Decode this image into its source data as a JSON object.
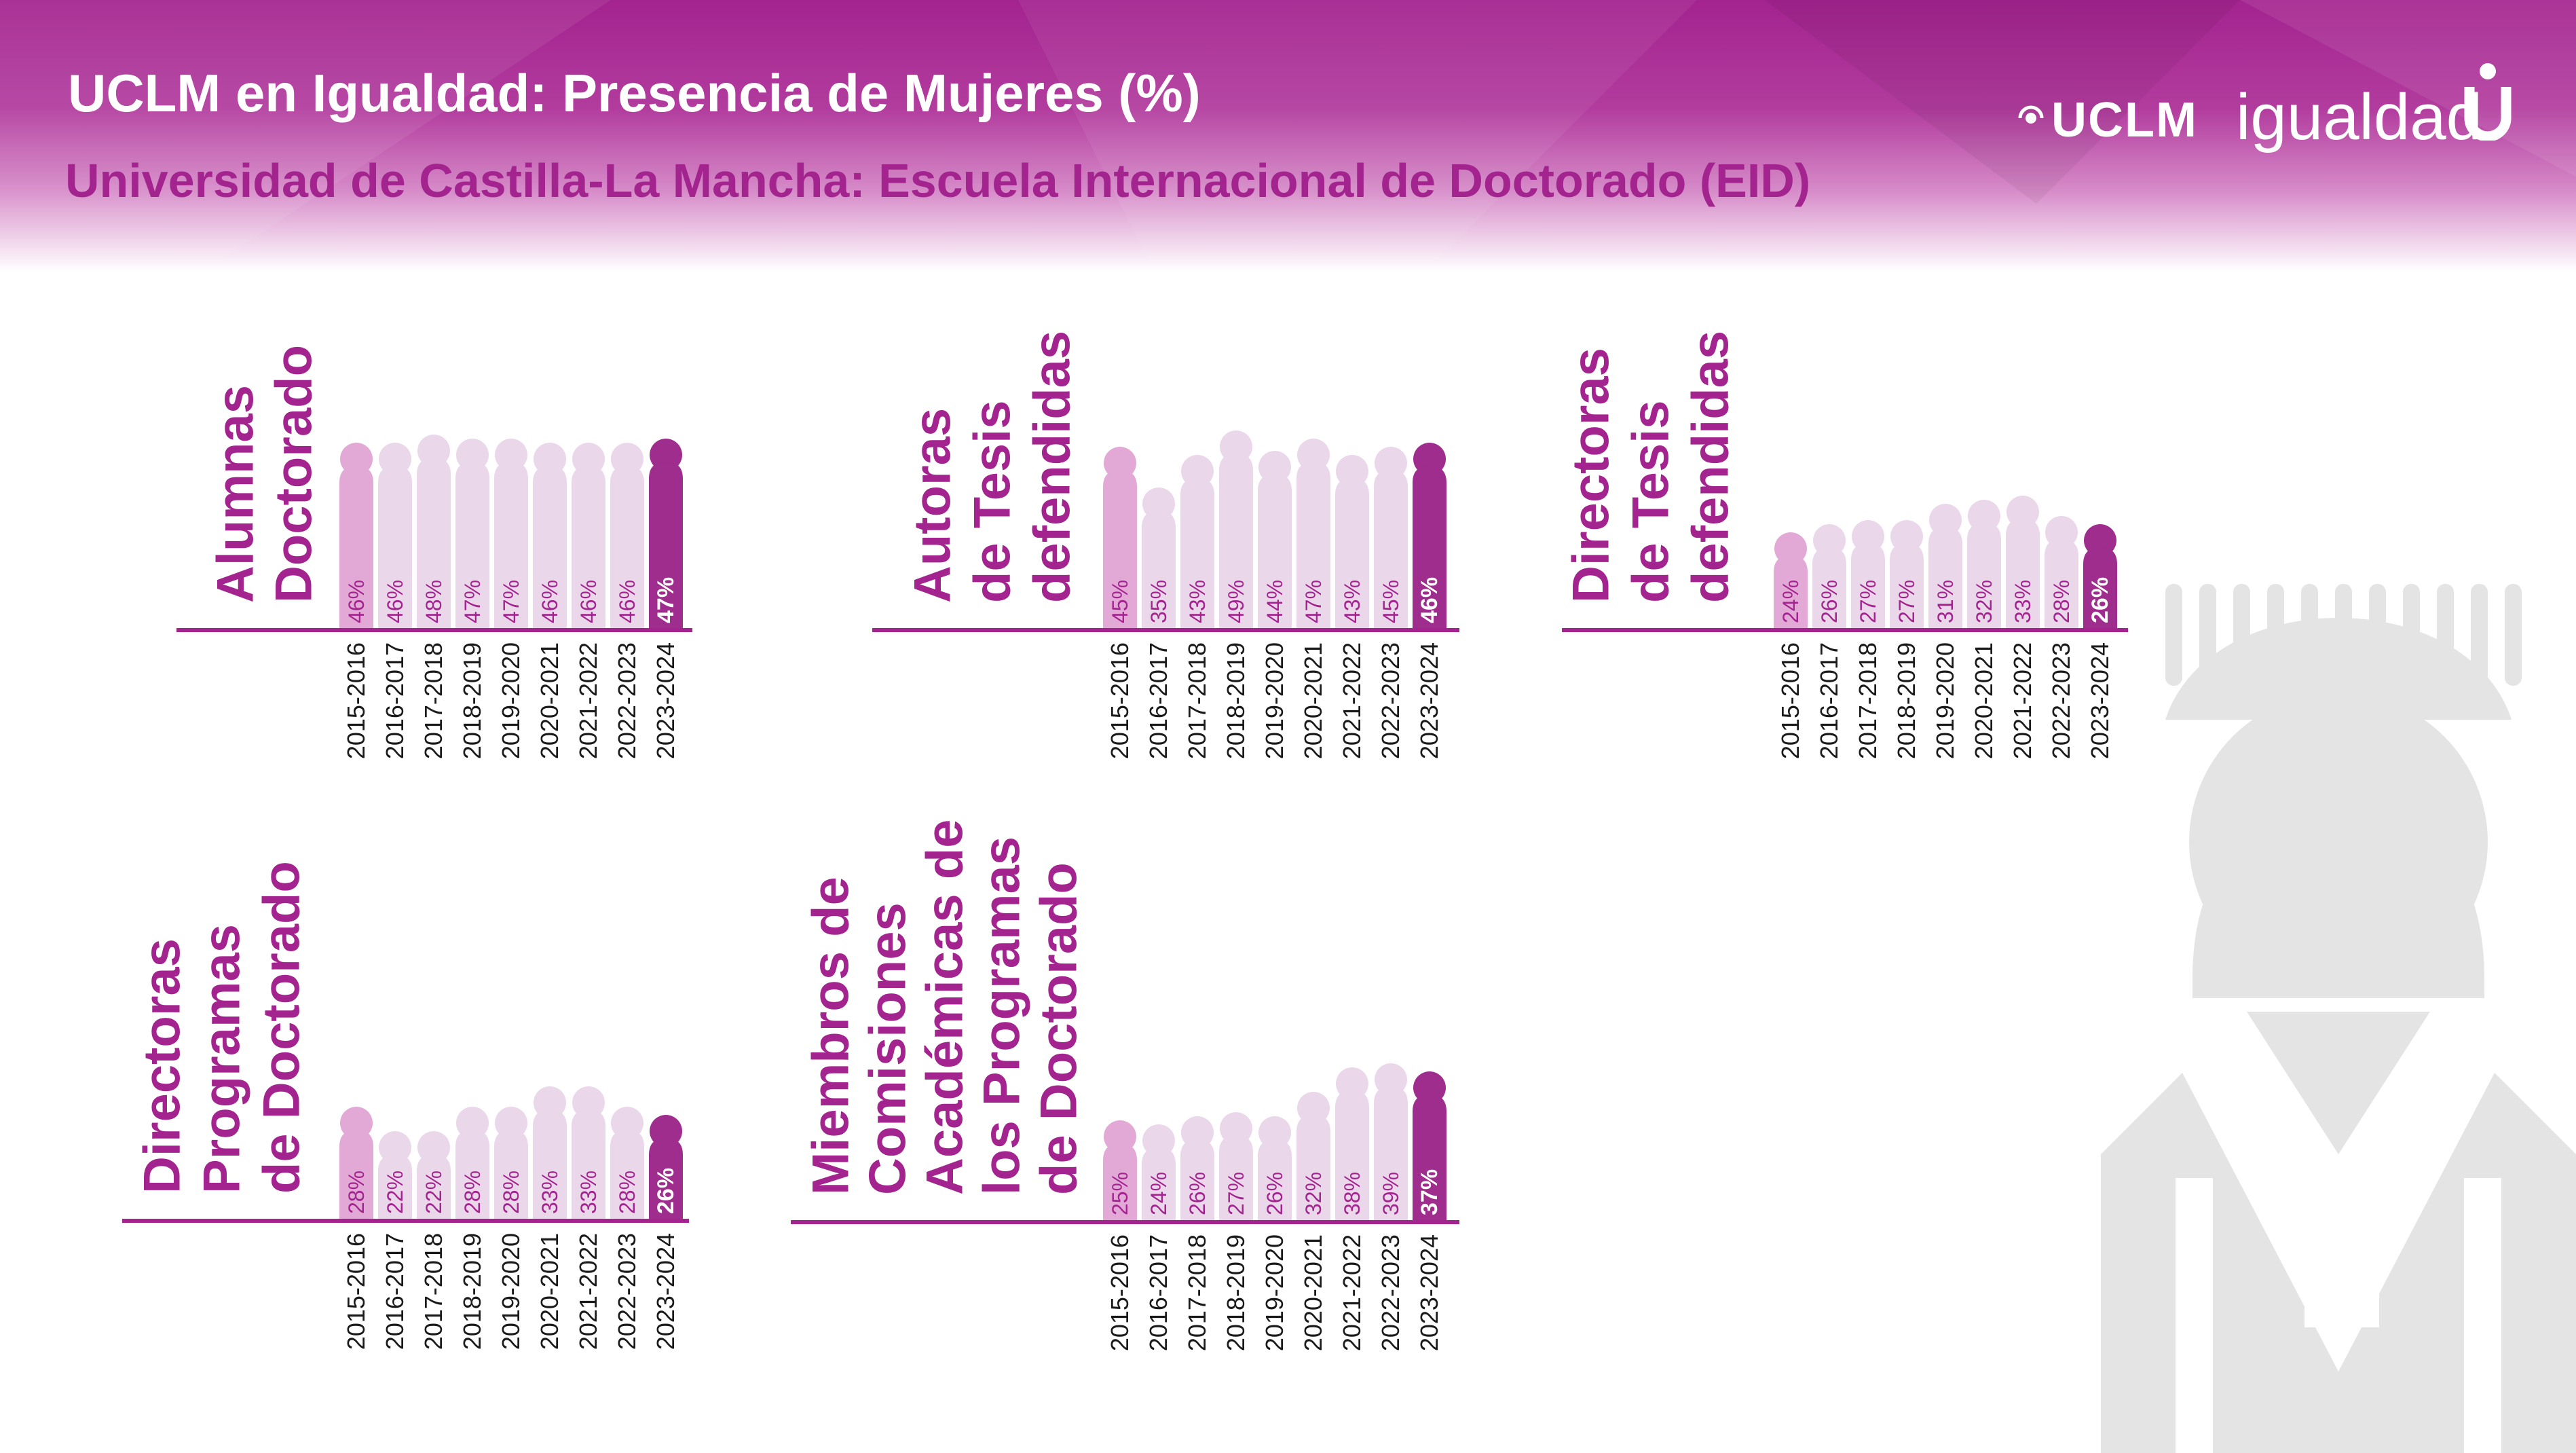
{
  "header": {
    "title": "UCLM en Igualdad: Presencia de Mujeres (%)",
    "subtitle": "Universidad de Castilla-La Mancha: Escuela Internacional de Doctorado (EID)",
    "logo": {
      "brand": "UCLM",
      "word": "igualdad",
      "mark": "U"
    }
  },
  "colors": {
    "header": "#a3238f",
    "axis": "#a3238f",
    "bar_first": "#e2a8d6",
    "bar_middle": "#ead7ea",
    "bar_last": "#9e2d8e",
    "label_text": "#a3238f",
    "label_last": "#ffffff",
    "figure_grey": "#e4e4e4"
  },
  "icons": {
    "background_figure": "graduate-figure-icon",
    "logo_mark": "uclm-u-icon"
  },
  "chart_data": [
    {
      "type": "bar",
      "title": "Alumnas Doctorado",
      "title_lines": [
        "Alumnas",
        "Doctorado"
      ],
      "categories": [
        "2015-2016",
        "2016-2017",
        "2017-2018",
        "2018-2019",
        "2019-2020",
        "2020-2021",
        "2021-2022",
        "2022-2023",
        "2023-2024"
      ],
      "values": [
        46,
        46,
        48,
        47,
        47,
        46,
        46,
        46,
        47
      ],
      "data_labels": [
        "46%",
        "46%",
        "48%",
        "47%",
        "47%",
        "46%",
        "46%",
        "46%",
        "47%"
      ],
      "unit": "%",
      "highlight_last": true,
      "grid": false
    },
    {
      "type": "bar",
      "title": "Autoras de Tesis defendidas",
      "title_lines": [
        "Autoras",
        "de Tesis",
        "defendidas"
      ],
      "categories": [
        "2015-2016",
        "2016-2017",
        "2017-2018",
        "2018-2019",
        "2019-2020",
        "2020-2021",
        "2021-2022",
        "2022-2023",
        "2023-2024"
      ],
      "values": [
        45,
        35,
        43,
        49,
        44,
        47,
        43,
        45,
        46
      ],
      "data_labels": [
        "45%",
        "35%",
        "43%",
        "49%",
        "44%",
        "47%",
        "43%",
        "45%",
        "46%"
      ],
      "unit": "%",
      "highlight_last": true,
      "grid": false
    },
    {
      "type": "bar",
      "title": "Directoras de Tesis defendidas",
      "title_lines": [
        "Directoras",
        "de Tesis",
        "defendidas"
      ],
      "categories": [
        "2015-2016",
        "2016-2017",
        "2017-2018",
        "2018-2019",
        "2019-2020",
        "2020-2021",
        "2021-2022",
        "2022-2023",
        "2023-2024"
      ],
      "values": [
        24,
        26,
        27,
        27,
        31,
        32,
        33,
        28,
        26
      ],
      "data_labels": [
        "24%",
        "26%",
        "27%",
        "27%",
        "31%",
        "32%",
        "33%",
        "28%",
        "26%"
      ],
      "unit": "%",
      "highlight_last": true,
      "grid": false
    },
    {
      "type": "bar",
      "title": "Directoras Programas de Doctorado",
      "title_lines": [
        "Directoras",
        "Programas",
        "de Doctorado"
      ],
      "categories": [
        "2015-2016",
        "2016-2017",
        "2017-2018",
        "2018-2019",
        "2019-2020",
        "2020-2021",
        "2021-2022",
        "2022-2023",
        "2023-2024"
      ],
      "values": [
        28,
        22,
        22,
        28,
        28,
        33,
        33,
        28,
        26
      ],
      "data_labels": [
        "28%",
        "22%",
        "22%",
        "28%",
        "28%",
        "33%",
        "33%",
        "28%",
        "26%"
      ],
      "unit": "%",
      "highlight_last": true,
      "grid": false
    },
    {
      "type": "bar",
      "title": "Miembros de Comisiones Académicas de los Programas de Doctorado",
      "title_lines": [
        "Miembros de",
        "Comisiones",
        "Académicas de",
        "los Programas",
        "de Doctorado"
      ],
      "categories": [
        "2015-2016",
        "2016-2017",
        "2017-2018",
        "2018-2019",
        "2019-2020",
        "2020-2021",
        "2021-2022",
        "2022-2023",
        "2023-2024"
      ],
      "values": [
        25,
        24,
        26,
        27,
        26,
        32,
        38,
        39,
        37
      ],
      "data_labels": [
        "25%",
        "24%",
        "26%",
        "27%",
        "26%",
        "32%",
        "38%",
        "39%",
        "37%"
      ],
      "unit": "%",
      "highlight_last": true,
      "grid": false
    }
  ]
}
